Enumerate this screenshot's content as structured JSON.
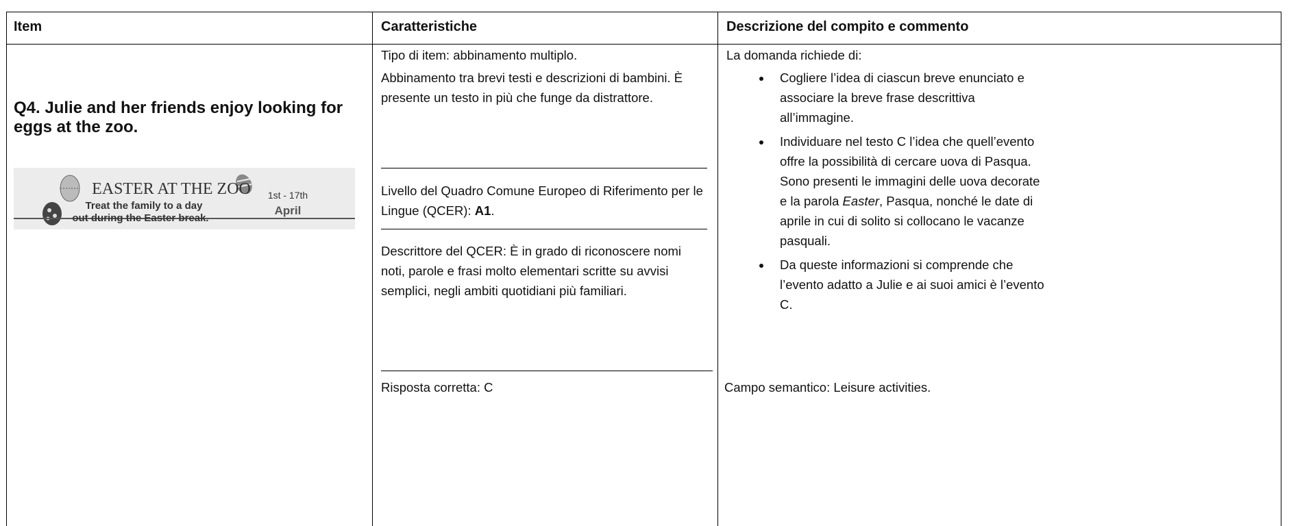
{
  "table": {
    "headers": [
      "Item",
      "Caratteristiche",
      "Descrizione del compito e commento"
    ],
    "item": {
      "question": "Q4. Julie and her friends enjoy looking for eggs at the zoo.",
      "image_texts": {
        "title": "EASTER AT THE ZOO",
        "line1": "Treat the family to a day",
        "line2": "out during the Easter break.",
        "dates": "1st - 17th",
        "month": "April"
      }
    },
    "caratteristiche": {
      "tipo": "Tipo di item: abbinamento multiplo.",
      "abbinamento": "Abbinamento tra brevi testi e descrizioni di bambini. È presente un testo in più che funge da distrattore.",
      "livello": [
        "Livello del Quadro Comune Europeo di Riferimento per le Lingue (QCER): ",
        "A1",
        "."
      ],
      "descrittore": "Descrittore del QCER: È in grado di riconoscere nomi noti, parole e frasi molto elementari scritte su avvisi semplici, negli ambiti quotidiani più familiari.",
      "risposta": "Risposta corretta: C"
    },
    "descrizione": {
      "intro": "La domanda richiede di:",
      "bullets": [
        [
          "Cogliere l’idea di ciascun breve enunciato e associare la breve frase descrittiva all’immagine."
        ],
        [
          "Individuare nel testo C l’idea che quell’evento offre la possibilità di cercare uova di Pasqua. Sono presenti le immagini delle uova decorate e la parola ",
          "Easter",
          ", Pasqua, nonché le date di aprile in cui di solito si collocano le vacanze pasquali."
        ],
        [
          "Da queste informazioni si comprende che l’evento adatto a Julie e ai suoi amici è l’evento C."
        ]
      ],
      "campo": "Campo semantico: Leisure activities."
    }
  }
}
